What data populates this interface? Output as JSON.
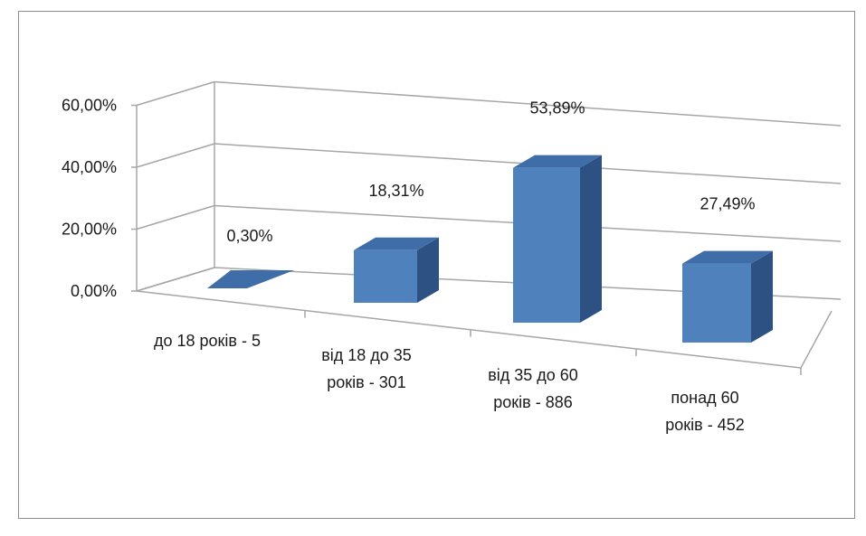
{
  "chart_data": {
    "type": "bar",
    "style": "3d-column",
    "categories": [
      [
        "до 18 років - 5"
      ],
      [
        "від 18 до 35",
        "років - 301"
      ],
      [
        "від 35 до 60",
        "років - 886"
      ],
      [
        "понад 60",
        "років - 452"
      ]
    ],
    "values": [
      0.3,
      18.31,
      53.89,
      27.49
    ],
    "data_labels": [
      "0,30%",
      "18,31%",
      "53,89%",
      "27,49%"
    ],
    "y_ticks": [
      "0,00%",
      "20,00%",
      "40,00%",
      "60,00%"
    ],
    "ylim": [
      0,
      60
    ],
    "grid": true,
    "legend": "none",
    "colors": {
      "bar_front": "#4f81bd",
      "bar_top": "#3f6da8",
      "bar_side": "#2e5183",
      "grid": "#a6a6a6"
    }
  }
}
